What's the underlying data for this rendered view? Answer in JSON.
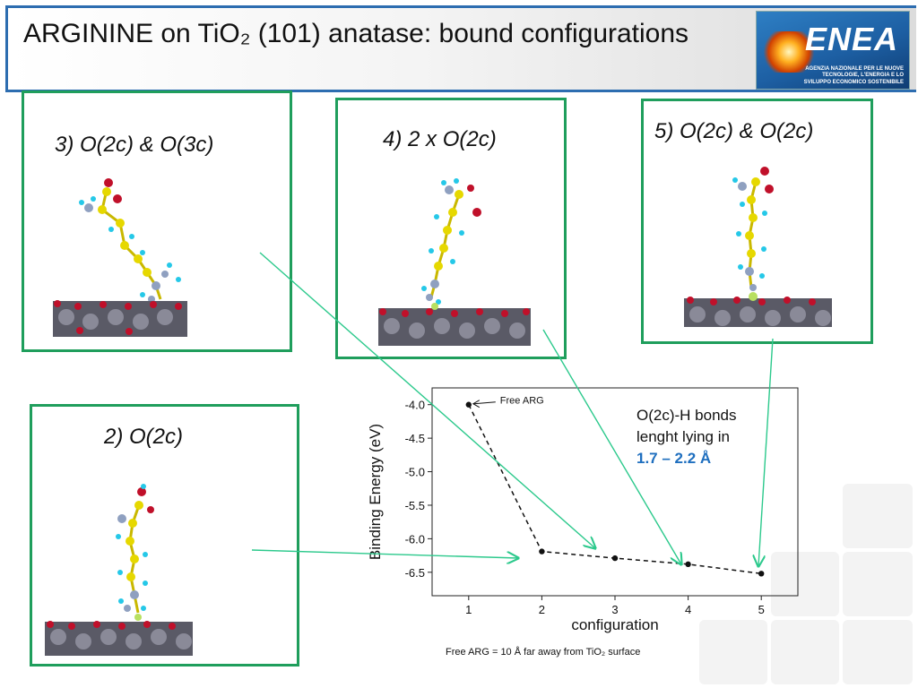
{
  "header": {
    "title": "ARGININE on TiO₂  (101) anatase: bound configurations",
    "logo_text": "ENEA",
    "logo_tagline": "AGENZIA NAZIONALE PER LE NUOVE TECNOLOGIE, L'ENERGIA E LO SVILUPPO ECONOMICO SOSTENIBILE"
  },
  "panels": {
    "p3": "3) O(2c) & O(3c)",
    "p4": "4) 2 x O(2c)",
    "p5": "5) O(2c) & O(2c)",
    "p2": "2) O(2c)"
  },
  "notes": {
    "bonds_line1": "O(2c)-H bonds",
    "bonds_line2": "lenght lying in",
    "bonds_range": "1.7 – 2.2 Å",
    "footnote": "Free ARG = 10 Å far away from TiO₂ surface"
  },
  "colors": {
    "panel_border": "#1f9e5c",
    "arrow": "#2cc98c",
    "highlight": "#1f6fbf",
    "header_rule": "#2d6db0"
  },
  "chart_data": {
    "type": "line",
    "x": [
      1,
      2,
      3,
      4,
      5
    ],
    "values": [
      -4.0,
      -6.19,
      -6.29,
      -6.38,
      -6.52
    ],
    "xlabel": "configuration",
    "ylabel": "Binding Energy (eV)",
    "xlim": [
      0.5,
      5.5
    ],
    "ylim": [
      -6.85,
      -3.75
    ],
    "xticks": [
      "1",
      "2",
      "3",
      "4",
      "5"
    ],
    "yticks": [
      "-4.0",
      "-4.5",
      "-5.0",
      "-5.5",
      "-6.0",
      "-6.5"
    ],
    "annotation": "Free ARG",
    "line_style": "dashed",
    "grid": false
  }
}
